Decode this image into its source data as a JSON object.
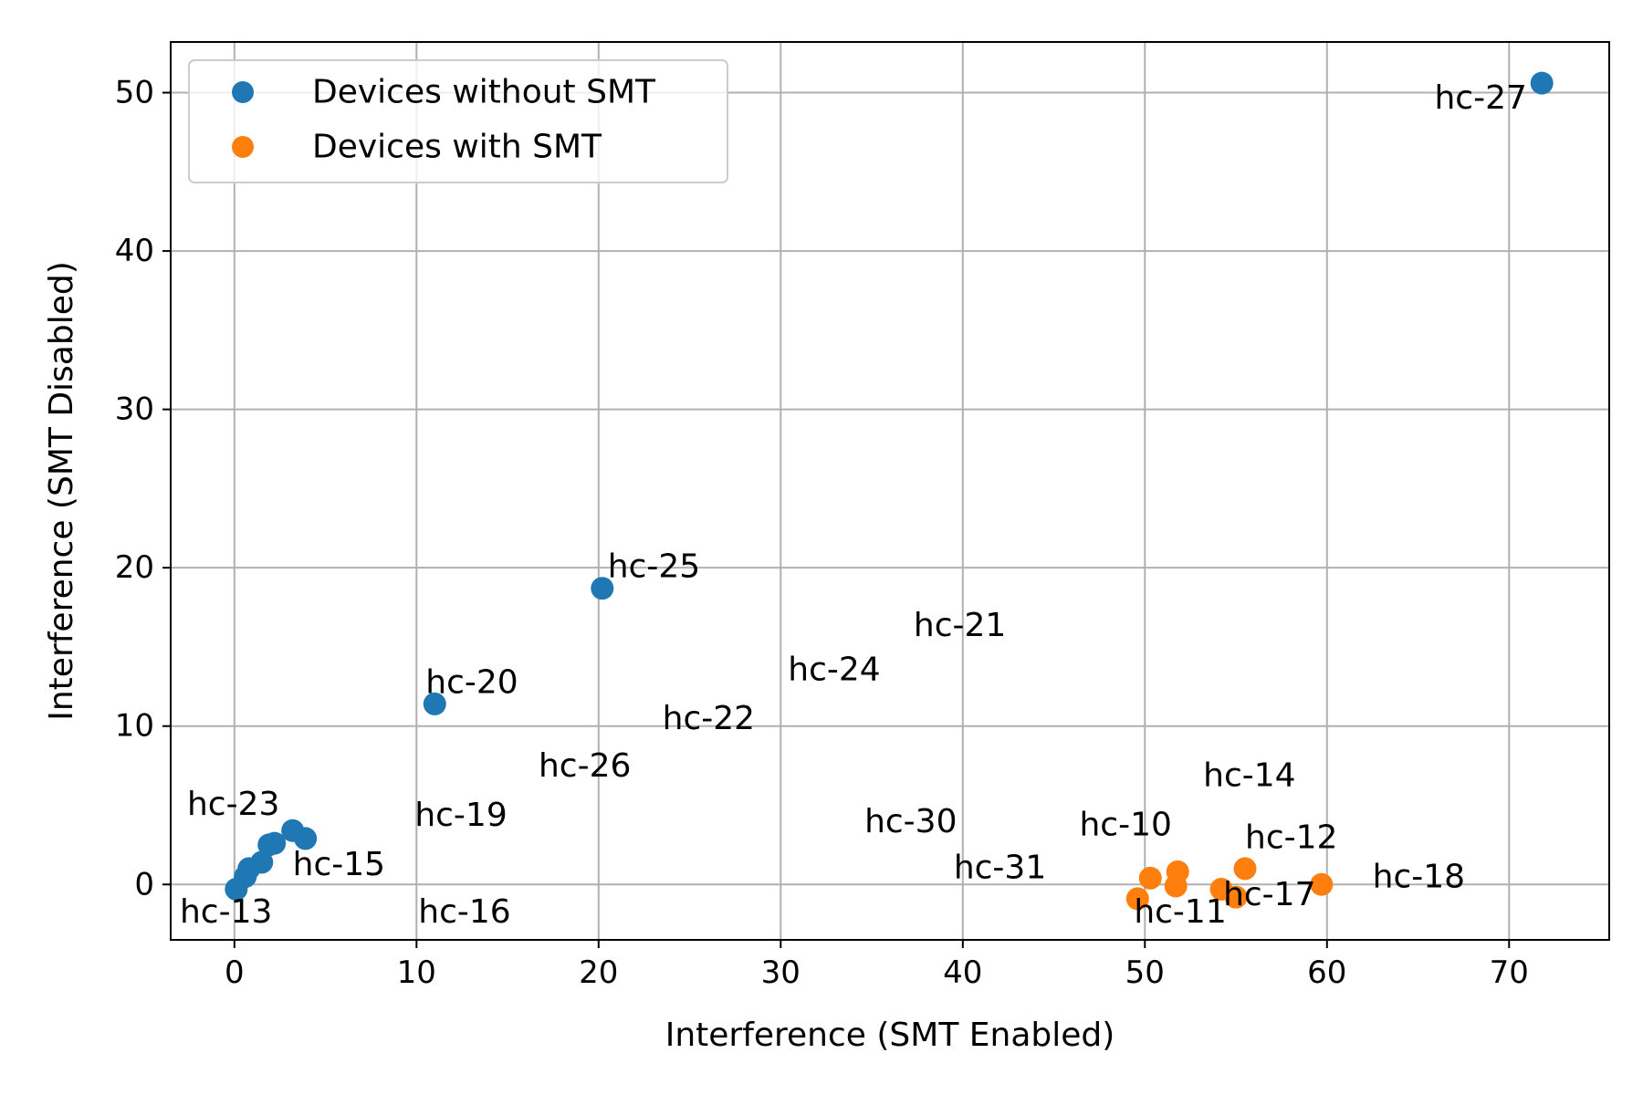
{
  "chart_data": {
    "type": "scatter",
    "title": "",
    "xlabel": "Interference (SMT Enabled)",
    "ylabel": "Interference (SMT Disabled)",
    "xlim": [
      -3.5,
      75.5
    ],
    "ylim": [
      -3.5,
      53.2
    ],
    "xticks": [
      0,
      10,
      20,
      30,
      40,
      50,
      60,
      70
    ],
    "yticks": [
      0,
      10,
      20,
      30,
      40,
      50
    ],
    "grid": true,
    "legend_position": "top-left",
    "series": [
      {
        "name": "Devices without SMT",
        "color": "#1f77b4",
        "points": [
          {
            "x": 71.8,
            "y": 50.6
          },
          {
            "x": 20.2,
            "y": 18.7
          },
          {
            "x": 11.0,
            "y": 11.4
          },
          {
            "x": 3.2,
            "y": 3.4
          },
          {
            "x": 3.9,
            "y": 2.9
          },
          {
            "x": 2.2,
            "y": 2.6
          },
          {
            "x": 1.9,
            "y": 2.5
          },
          {
            "x": 1.5,
            "y": 1.4
          },
          {
            "x": 0.8,
            "y": 1.0
          },
          {
            "x": 0.6,
            "y": 0.5
          },
          {
            "x": 0.1,
            "y": -0.3
          }
        ]
      },
      {
        "name": "Devices with SMT",
        "color": "#ff7f0e",
        "points": [
          {
            "x": 49.6,
            "y": -0.9
          },
          {
            "x": 50.3,
            "y": 0.4
          },
          {
            "x": 51.8,
            "y": 0.8
          },
          {
            "x": 51.7,
            "y": -0.1
          },
          {
            "x": 54.2,
            "y": -0.3
          },
          {
            "x": 55.0,
            "y": -0.8
          },
          {
            "x": 55.5,
            "y": 1.0
          },
          {
            "x": 59.7,
            "y": 0.0
          }
        ]
      }
    ],
    "annotations": [
      {
        "text": "hc-27",
        "x": 65.9,
        "y": 49.0
      },
      {
        "text": "hc-25",
        "x": 20.5,
        "y": 19.4
      },
      {
        "text": "hc-21",
        "x": 37.3,
        "y": 15.7
      },
      {
        "text": "hc-24",
        "x": 30.4,
        "y": 12.9
      },
      {
        "text": "hc-20",
        "x": 10.5,
        "y": 12.1
      },
      {
        "text": "hc-22",
        "x": 23.5,
        "y": 9.8
      },
      {
        "text": "hc-26",
        "x": 16.7,
        "y": 6.8
      },
      {
        "text": "hc-14",
        "x": 53.2,
        "y": 6.2
      },
      {
        "text": "hc-23",
        "x": -2.6,
        "y": 4.4
      },
      {
        "text": "hc-19",
        "x": 9.9,
        "y": 3.7
      },
      {
        "text": "hc-30",
        "x": 34.6,
        "y": 3.3
      },
      {
        "text": "hc-10",
        "x": 46.4,
        "y": 3.1
      },
      {
        "text": "hc-12",
        "x": 55.5,
        "y": 2.3
      },
      {
        "text": "hc-15",
        "x": 3.2,
        "y": 0.6
      },
      {
        "text": "hc-31",
        "x": 39.5,
        "y": 0.4
      },
      {
        "text": "hc-18",
        "x": 62.5,
        "y": -0.2
      },
      {
        "text": "hc-17",
        "x": 54.3,
        "y": -1.3
      },
      {
        "text": "hc-11",
        "x": 49.4,
        "y": -2.4
      },
      {
        "text": "hc-13",
        "x": -3.0,
        "y": -2.4
      },
      {
        "text": "hc-16",
        "x": 10.1,
        "y": -2.4
      }
    ]
  }
}
